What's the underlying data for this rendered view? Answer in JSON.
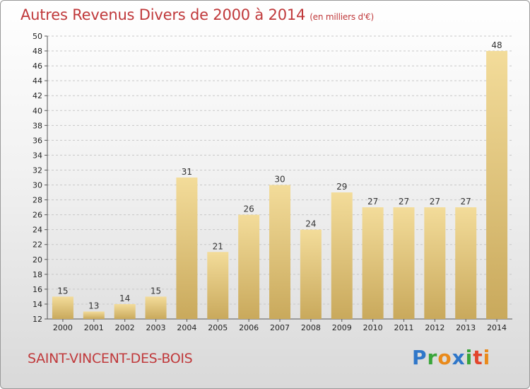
{
  "title": "Autres Revenus Divers de 2000 à 2014",
  "unit": "(en milliers d'€)",
  "commune": "SAINT-VINCENT-DES-BOIS",
  "brand": {
    "letters": [
      "P",
      "r",
      "o",
      "x",
      "i",
      "t",
      "i"
    ],
    "colors": [
      "#2f77c9",
      "#3aa53a",
      "#e98a1b",
      "#2f77c9",
      "#3aa53a",
      "#e2462d",
      "#e98a1b"
    ]
  },
  "colors": {
    "title": "#c0393b",
    "bar_light": "#f3dc9a",
    "bar_dark": "#c9a95c",
    "grid": "#c8c8c8"
  },
  "chart_data": {
    "type": "bar",
    "categories": [
      "2000",
      "2001",
      "2002",
      "2003",
      "2004",
      "2005",
      "2006",
      "2007",
      "2008",
      "2009",
      "2010",
      "2011",
      "2012",
      "2013",
      "2014"
    ],
    "values": [
      15,
      13,
      14,
      15,
      31,
      21,
      26,
      30,
      24,
      29,
      27,
      27,
      27,
      27,
      48
    ],
    "ylim": [
      12,
      50
    ],
    "yticks": [
      12,
      14,
      16,
      18,
      20,
      22,
      24,
      26,
      28,
      30,
      32,
      34,
      36,
      38,
      40,
      42,
      44,
      46,
      48,
      50
    ],
    "grid": true,
    "xlabel": "",
    "ylabel": ""
  }
}
